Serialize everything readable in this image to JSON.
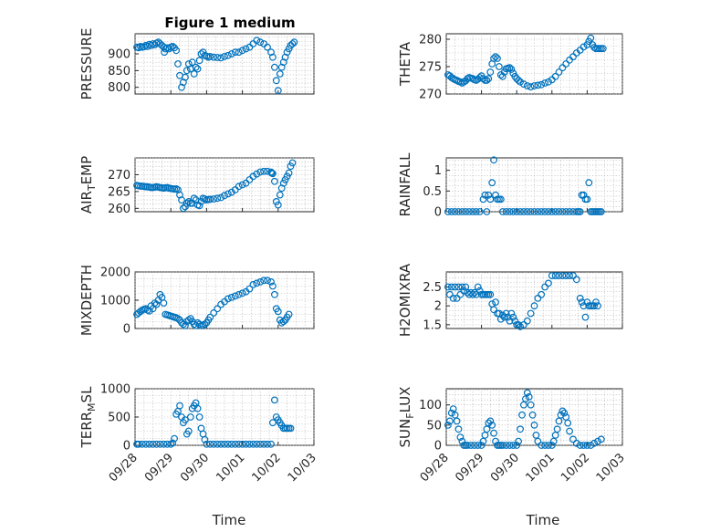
{
  "figure": {
    "title": "Figure 1 medium",
    "xlabel": "Time"
  },
  "colors": {
    "marker": "#0072BD",
    "axis": "#262626",
    "grid": "#b0b0b0"
  },
  "xtick_labels": [
    "09/28",
    "09/29",
    "09/30",
    "10/01",
    "10/02",
    "10/03"
  ],
  "chart_data": [
    {
      "type": "scatter",
      "marker": "circle",
      "ylabel": "PRESSURE",
      "ylim": [
        780,
        960
      ],
      "yticks": [
        800,
        850,
        900
      ],
      "xlim": [
        0,
        5
      ],
      "x": [
        0.05,
        0.1,
        0.15,
        0.2,
        0.25,
        0.3,
        0.35,
        0.4,
        0.45,
        0.5,
        0.55,
        0.6,
        0.65,
        0.7,
        0.75,
        0.8,
        0.82,
        0.85,
        0.9,
        0.95,
        1.0,
        1.05,
        1.1,
        1.15,
        1.2,
        1.25,
        1.3,
        1.35,
        1.4,
        1.45,
        1.5,
        1.55,
        1.6,
        1.65,
        1.7,
        1.75,
        1.8,
        1.85,
        1.9,
        1.95,
        2.0,
        2.05,
        2.1,
        2.2,
        2.3,
        2.4,
        2.5,
        2.6,
        2.7,
        2.8,
        2.9,
        3.0,
        3.1,
        3.2,
        3.3,
        3.4,
        3.5,
        3.6,
        3.7,
        3.8,
        3.85,
        3.9,
        3.95,
        4.0,
        4.05,
        4.1,
        4.15,
        4.2,
        4.25,
        4.3,
        4.35,
        4.4,
        4.45
      ],
      "y": [
        920,
        918,
        922,
        920,
        921,
        925,
        922,
        928,
        925,
        930,
        927,
        932,
        935,
        930,
        925,
        920,
        905,
        915,
        918,
        915,
        920,
        922,
        918,
        910,
        870,
        835,
        800,
        815,
        830,
        850,
        870,
        855,
        875,
        840,
        860,
        855,
        880,
        900,
        905,
        895,
        893,
        890,
        892,
        890,
        889,
        888,
        892,
        895,
        900,
        905,
        905,
        910,
        915,
        920,
        930,
        940,
        935,
        930,
        920,
        905,
        890,
        860,
        820,
        790,
        840,
        860,
        875,
        890,
        905,
        915,
        925,
        930,
        935
      ]
    },
    {
      "type": "scatter",
      "marker": "circle",
      "ylabel": "THETA",
      "ylim": [
        270,
        281
      ],
      "yticks": [
        270,
        275,
        280
      ],
      "xlim": [
        0,
        5
      ],
      "x": [
        0.05,
        0.1,
        0.15,
        0.2,
        0.25,
        0.3,
        0.35,
        0.4,
        0.45,
        0.5,
        0.55,
        0.6,
        0.65,
        0.7,
        0.75,
        0.8,
        0.85,
        0.9,
        0.95,
        1.0,
        1.05,
        1.1,
        1.15,
        1.2,
        1.25,
        1.3,
        1.35,
        1.4,
        1.45,
        1.5,
        1.55,
        1.6,
        1.65,
        1.7,
        1.75,
        1.8,
        1.85,
        1.9,
        1.95,
        2.0,
        2.05,
        2.1,
        2.2,
        2.3,
        2.4,
        2.5,
        2.6,
        2.7,
        2.8,
        2.9,
        3.0,
        3.1,
        3.2,
        3.3,
        3.4,
        3.5,
        3.6,
        3.7,
        3.8,
        3.9,
        4.0,
        4.05,
        4.1,
        4.15,
        4.2,
        4.25,
        4.3,
        4.35,
        4.4,
        4.45
      ],
      "y": [
        273.5,
        273.3,
        273.0,
        272.8,
        272.6,
        272.5,
        272.3,
        272.2,
        272.0,
        272.2,
        272.4,
        272.8,
        273.0,
        272.9,
        272.8,
        272.6,
        272.5,
        272.7,
        273.0,
        273.3,
        272.8,
        272.5,
        272.5,
        272.8,
        274,
        275.5,
        276.5,
        276.8,
        276.5,
        275,
        273.5,
        273.2,
        274,
        274.6,
        274.7,
        274.8,
        274.5,
        273.8,
        273.2,
        272.8,
        272.5,
        272.2,
        271.8,
        271.5,
        271.3,
        271.5,
        271.6,
        271.7,
        272.0,
        272.2,
        272.6,
        273.2,
        274.0,
        274.8,
        275.5,
        276.2,
        276.8,
        277.5,
        278.0,
        278.6,
        279.0,
        279.6,
        280.2,
        279.0,
        278.5,
        278.3,
        278.3,
        278.3,
        278.3,
        278.3
      ]
    },
    {
      "type": "scatter",
      "marker": "circle",
      "ylabel": "AIR_TEMP",
      "ylim": [
        259,
        275
      ],
      "yticks": [
        260,
        265,
        270
      ],
      "xlim": [
        0,
        5
      ],
      "x": [
        0.05,
        0.1,
        0.15,
        0.2,
        0.25,
        0.3,
        0.35,
        0.4,
        0.45,
        0.5,
        0.55,
        0.6,
        0.65,
        0.7,
        0.75,
        0.8,
        0.85,
        0.9,
        0.95,
        1.0,
        1.05,
        1.1,
        1.15,
        1.2,
        1.25,
        1.3,
        1.35,
        1.4,
        1.45,
        1.5,
        1.55,
        1.6,
        1.65,
        1.7,
        1.75,
        1.8,
        1.85,
        1.9,
        1.95,
        2.0,
        2.05,
        2.1,
        2.2,
        2.3,
        2.4,
        2.5,
        2.6,
        2.7,
        2.8,
        2.9,
        3.0,
        3.1,
        3.2,
        3.3,
        3.4,
        3.5,
        3.6,
        3.7,
        3.8,
        3.82,
        3.85,
        3.9,
        3.95,
        4.0,
        4.05,
        4.1,
        4.15,
        4.2,
        4.25,
        4.3,
        4.35,
        4.4
      ],
      "y": [
        266.8,
        266.7,
        266.6,
        266.6,
        266.5,
        266.4,
        266.4,
        266.3,
        266.2,
        266.2,
        266.3,
        266.4,
        266.3,
        266.2,
        266.1,
        266.0,
        266.1,
        266.2,
        266.0,
        265.9,
        265.8,
        265.7,
        265.8,
        265.5,
        264.0,
        262.5,
        260.0,
        260.5,
        261.5,
        262.0,
        261.5,
        261.5,
        263.0,
        262.5,
        261.0,
        260.8,
        262.0,
        263.0,
        262.8,
        262.5,
        262.6,
        262.7,
        262.8,
        263.0,
        263.2,
        263.8,
        264.3,
        264.8,
        265.5,
        266.5,
        267.0,
        267.5,
        268.5,
        269.5,
        270.2,
        270.8,
        271.0,
        271.0,
        270.8,
        270.5,
        270.3,
        268.0,
        262.0,
        261.0,
        264.0,
        266.0,
        267.5,
        268.5,
        269.5,
        270.5,
        272.5,
        273.5
      ]
    },
    {
      "type": "scatter",
      "marker": "circle",
      "ylabel": "RAINFALL",
      "ylim": [
        0,
        1.3
      ],
      "yticks": [
        0,
        0.5,
        1
      ],
      "xlim": [
        0,
        5
      ],
      "x": [
        0.05,
        0.15,
        0.25,
        0.35,
        0.45,
        0.55,
        0.65,
        0.75,
        0.85,
        0.95,
        1.05,
        1.1,
        1.15,
        1.2,
        1.25,
        1.3,
        1.35,
        1.4,
        1.45,
        1.5,
        1.55,
        1.6,
        1.7,
        1.8,
        1.9,
        2.0,
        2.1,
        2.2,
        2.3,
        2.4,
        2.5,
        2.6,
        2.7,
        2.8,
        2.9,
        3.0,
        3.1,
        3.2,
        3.3,
        3.4,
        3.5,
        3.6,
        3.7,
        3.75,
        3.8,
        3.85,
        3.9,
        3.95,
        4.0,
        4.05,
        4.1,
        4.15,
        4.2,
        4.25,
        4.3,
        4.35,
        4.4
      ],
      "y": [
        0,
        0,
        0,
        0,
        0,
        0,
        0,
        0,
        0,
        0,
        0.3,
        0.4,
        0,
        0.4,
        0.3,
        0.7,
        1.25,
        0.4,
        0.3,
        0.3,
        0.3,
        0,
        0,
        0,
        0,
        0,
        0,
        0,
        0,
        0,
        0,
        0,
        0,
        0,
        0,
        0,
        0,
        0,
        0,
        0,
        0,
        0,
        0,
        0,
        0,
        0.4,
        0.4,
        0.3,
        0.3,
        0.7,
        0,
        0,
        0,
        0,
        0,
        0,
        0
      ]
    },
    {
      "type": "scatter",
      "marker": "circle",
      "ylabel": "MIXDEPTH",
      "ylim": [
        0,
        2000
      ],
      "yticks": [
        0,
        1000,
        2000
      ],
      "xlim": [
        0,
        5
      ],
      "x": [
        0.05,
        0.1,
        0.15,
        0.2,
        0.25,
        0.3,
        0.35,
        0.4,
        0.45,
        0.5,
        0.55,
        0.6,
        0.65,
        0.7,
        0.75,
        0.8,
        0.85,
        0.9,
        0.95,
        1.0,
        1.05,
        1.1,
        1.15,
        1.2,
        1.25,
        1.3,
        1.35,
        1.4,
        1.45,
        1.5,
        1.55,
        1.6,
        1.65,
        1.7,
        1.75,
        1.8,
        1.85,
        1.9,
        1.95,
        2.0,
        2.05,
        2.1,
        2.2,
        2.3,
        2.4,
        2.5,
        2.6,
        2.7,
        2.8,
        2.9,
        3.0,
        3.1,
        3.2,
        3.3,
        3.4,
        3.5,
        3.6,
        3.7,
        3.8,
        3.85,
        3.9,
        3.95,
        4.0,
        4.05,
        4.1,
        4.15,
        4.2,
        4.25,
        4.3
      ],
      "y": [
        500,
        550,
        600,
        650,
        680,
        700,
        650,
        620,
        800,
        700,
        900,
        850,
        1000,
        1200,
        1100,
        900,
        500,
        480,
        460,
        440,
        420,
        400,
        380,
        350,
        300,
        200,
        150,
        100,
        250,
        300,
        350,
        250,
        150,
        100,
        200,
        150,
        100,
        120,
        150,
        200,
        300,
        400,
        550,
        700,
        850,
        950,
        1050,
        1100,
        1150,
        1200,
        1250,
        1300,
        1400,
        1550,
        1600,
        1650,
        1700,
        1700,
        1650,
        1500,
        1200,
        700,
        600,
        300,
        200,
        250,
        300,
        400,
        500
      ]
    },
    {
      "type": "scatter",
      "marker": "circle",
      "ylabel": "H2OMIXRA",
      "ylim": [
        1.4,
        2.9
      ],
      "yticks": [
        1.5,
        2,
        2.5
      ],
      "xlim": [
        0,
        5
      ],
      "x": [
        0.05,
        0.1,
        0.15,
        0.2,
        0.25,
        0.3,
        0.35,
        0.4,
        0.45,
        0.5,
        0.55,
        0.6,
        0.65,
        0.7,
        0.75,
        0.8,
        0.85,
        0.9,
        0.95,
        1.0,
        1.05,
        1.1,
        1.15,
        1.2,
        1.25,
        1.3,
        1.35,
        1.4,
        1.45,
        1.5,
        1.55,
        1.6,
        1.65,
        1.7,
        1.75,
        1.8,
        1.85,
        1.9,
        1.95,
        2.0,
        2.05,
        2.1,
        2.2,
        2.3,
        2.4,
        2.5,
        2.6,
        2.7,
        2.8,
        2.9,
        3.0,
        3.1,
        3.2,
        3.3,
        3.4,
        3.5,
        3.6,
        3.7,
        3.8,
        3.85,
        3.9,
        3.95,
        4.0,
        4.05,
        4.1,
        4.15,
        4.2,
        4.25,
        4.3
      ],
      "y": [
        2.5,
        2.3,
        2.5,
        2.2,
        2.5,
        2.2,
        2.5,
        2.3,
        2.5,
        2.4,
        2.5,
        2.35,
        2.3,
        2.35,
        2.3,
        2.35,
        2.3,
        2.5,
        2.4,
        2.3,
        2.3,
        2.3,
        2.3,
        2.3,
        2.3,
        2.05,
        1.9,
        2.1,
        1.8,
        1.8,
        1.65,
        1.75,
        1.7,
        1.8,
        1.7,
        1.6,
        1.8,
        1.7,
        1.6,
        1.5,
        1.5,
        1.45,
        1.5,
        1.6,
        1.8,
        2.0,
        2.2,
        2.3,
        2.5,
        2.6,
        2.8,
        2.8,
        2.8,
        2.8,
        2.8,
        2.8,
        2.8,
        2.7,
        2.2,
        2.1,
        2.0,
        1.7,
        2.1,
        2.0,
        2.0,
        2.0,
        2.0,
        2.1,
        2.0
      ]
    },
    {
      "type": "scatter",
      "marker": "circle",
      "ylabel": "TERR_MSL",
      "ylim": [
        0,
        1000
      ],
      "yticks": [
        0,
        500,
        1000
      ],
      "xlim": [
        0,
        5
      ],
      "x": [
        0.05,
        0.1,
        0.2,
        0.3,
        0.4,
        0.5,
        0.6,
        0.7,
        0.8,
        0.9,
        1.0,
        1.05,
        1.1,
        1.15,
        1.2,
        1.25,
        1.3,
        1.35,
        1.4,
        1.45,
        1.5,
        1.55,
        1.6,
        1.65,
        1.7,
        1.75,
        1.8,
        1.85,
        1.9,
        1.95,
        2.0,
        2.1,
        2.2,
        2.3,
        2.4,
        2.5,
        2.6,
        2.7,
        2.8,
        2.9,
        3.0,
        3.1,
        3.2,
        3.3,
        3.4,
        3.5,
        3.6,
        3.7,
        3.8,
        3.85,
        3.9,
        3.95,
        4.0,
        4.05,
        4.1,
        4.15,
        4.2,
        4.25,
        4.3,
        4.35
      ],
      "y": [
        20,
        20,
        20,
        20,
        20,
        20,
        20,
        20,
        20,
        20,
        20,
        40,
        120,
        550,
        600,
        700,
        500,
        400,
        450,
        200,
        250,
        500,
        650,
        700,
        750,
        650,
        500,
        300,
        200,
        100,
        20,
        20,
        20,
        20,
        20,
        20,
        20,
        20,
        20,
        20,
        20,
        20,
        20,
        20,
        20,
        20,
        20,
        20,
        20,
        400,
        800,
        500,
        450,
        400,
        350,
        300,
        300,
        300,
        300,
        300
      ]
    },
    {
      "type": "scatter",
      "marker": "circle",
      "ylabel": "SUN_FLUX",
      "ylim": [
        0,
        140
      ],
      "yticks": [
        0,
        50,
        100
      ],
      "xlim": [
        0,
        5
      ],
      "x": [
        0.05,
        0.1,
        0.15,
        0.2,
        0.25,
        0.3,
        0.35,
        0.4,
        0.45,
        0.5,
        0.55,
        0.6,
        0.7,
        0.8,
        0.9,
        1.0,
        1.05,
        1.1,
        1.15,
        1.2,
        1.25,
        1.3,
        1.35,
        1.4,
        1.45,
        1.5,
        1.55,
        1.6,
        1.7,
        1.8,
        1.9,
        2.0,
        2.05,
        2.1,
        2.15,
        2.2,
        2.25,
        2.3,
        2.35,
        2.4,
        2.45,
        2.5,
        2.55,
        2.6,
        2.7,
        2.8,
        2.9,
        3.0,
        3.05,
        3.1,
        3.15,
        3.2,
        3.25,
        3.3,
        3.35,
        3.4,
        3.45,
        3.5,
        3.6,
        3.7,
        3.8,
        3.9,
        4.0,
        4.1,
        4.2,
        4.3,
        4.4
      ],
      "y": [
        50,
        60,
        80,
        90,
        75,
        60,
        40,
        20,
        10,
        0,
        0,
        0,
        0,
        0,
        0,
        0,
        10,
        25,
        40,
        55,
        60,
        50,
        30,
        10,
        0,
        0,
        0,
        0,
        0,
        0,
        0,
        0,
        10,
        40,
        75,
        100,
        115,
        130,
        120,
        100,
        75,
        50,
        25,
        10,
        0,
        0,
        0,
        0,
        10,
        25,
        40,
        60,
        75,
        85,
        80,
        70,
        55,
        35,
        15,
        5,
        0,
        0,
        0,
        0,
        5,
        10,
        15
      ]
    }
  ]
}
